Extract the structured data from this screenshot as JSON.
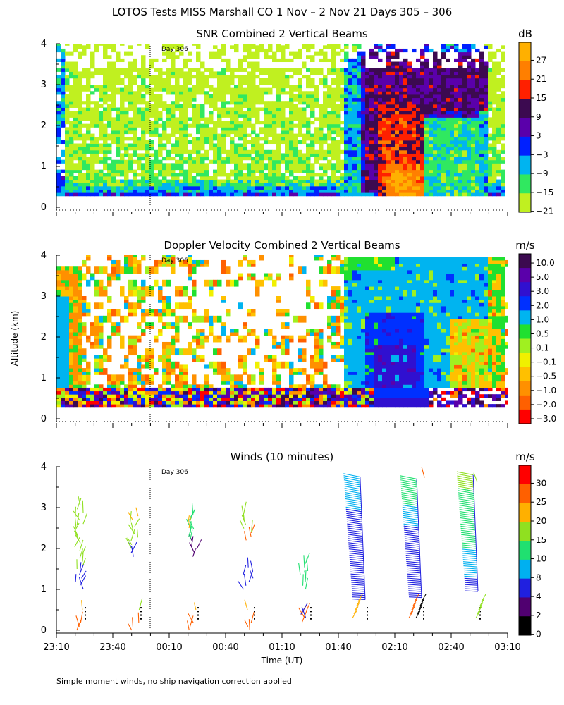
{
  "title": "LOTOS Tests MISS Marshall CO    1 Nov –  2 Nov 21 Days 305 – 306",
  "footnote": "Simple moment winds, no ship navigation correction applied",
  "chart_data": [
    {
      "type": "heatmap",
      "title": "SNR Combined 2 Vertical Beams",
      "ylabel": "",
      "xlabel": "",
      "unit": "dB",
      "ylim": [
        0,
        4
      ],
      "yticks": [
        "0",
        "1",
        "2",
        "3",
        "4"
      ],
      "day_marker": "Day 306",
      "colorbar": {
        "labels": [
          "27",
          "21",
          "15",
          "9",
          "3",
          "−3",
          "−9",
          "−15",
          "−21"
        ],
        "colors": [
          "#ffb000",
          "#ff7f00",
          "#ff2000",
          "#3c0a50",
          "#5a00aa",
          "#0020ff",
          "#00b4f0",
          "#30e860",
          "#c0f020"
        ]
      }
    },
    {
      "type": "heatmap",
      "title": "Doppler Velocity Combined 2 Vertical Beams",
      "ylabel": "Altitude (km)",
      "xlabel": "",
      "unit": "m/s",
      "ylim": [
        0,
        4
      ],
      "yticks": [
        "0",
        "1",
        "2",
        "3",
        "4"
      ],
      "day_marker": "Day 306",
      "colorbar": {
        "labels": [
          "10.0",
          "5.0",
          "3.0",
          "2.0",
          "1.0",
          "0.5",
          "0.1",
          "−0.1",
          "−0.5",
          "−1.0",
          "−2.0",
          "−3.0"
        ],
        "colors": [
          "#3c0a50",
          "#5a00aa",
          "#3010d0",
          "#0030ff",
          "#00b4f0",
          "#20e030",
          "#a0f020",
          "#f0f000",
          "#ffc000",
          "#ff9000",
          "#ff6000",
          "#ff0000"
        ]
      }
    },
    {
      "type": "scatter",
      "title": "Winds (10 minutes)",
      "ylabel": "",
      "xlabel": "Time (UT)",
      "unit": "m/s",
      "ylim": [
        0,
        4
      ],
      "yticks": [
        "0",
        "1",
        "2",
        "3",
        "4"
      ],
      "xticks": [
        "23:10",
        "23:40",
        "00:10",
        "00:40",
        "01:10",
        "01:40",
        "02:10",
        "02:40",
        "03:10"
      ],
      "day_marker": "Day 306",
      "colorbar": {
        "labels": [
          "30",
          "25",
          "20",
          "15",
          "10",
          "8",
          "4",
          "2",
          "0"
        ],
        "colors": [
          "#ff0000",
          "#ff6000",
          "#ffb000",
          "#90e020",
          "#20e070",
          "#00b0f0",
          "#2020e0",
          "#500070",
          "#000000"
        ]
      }
    }
  ]
}
